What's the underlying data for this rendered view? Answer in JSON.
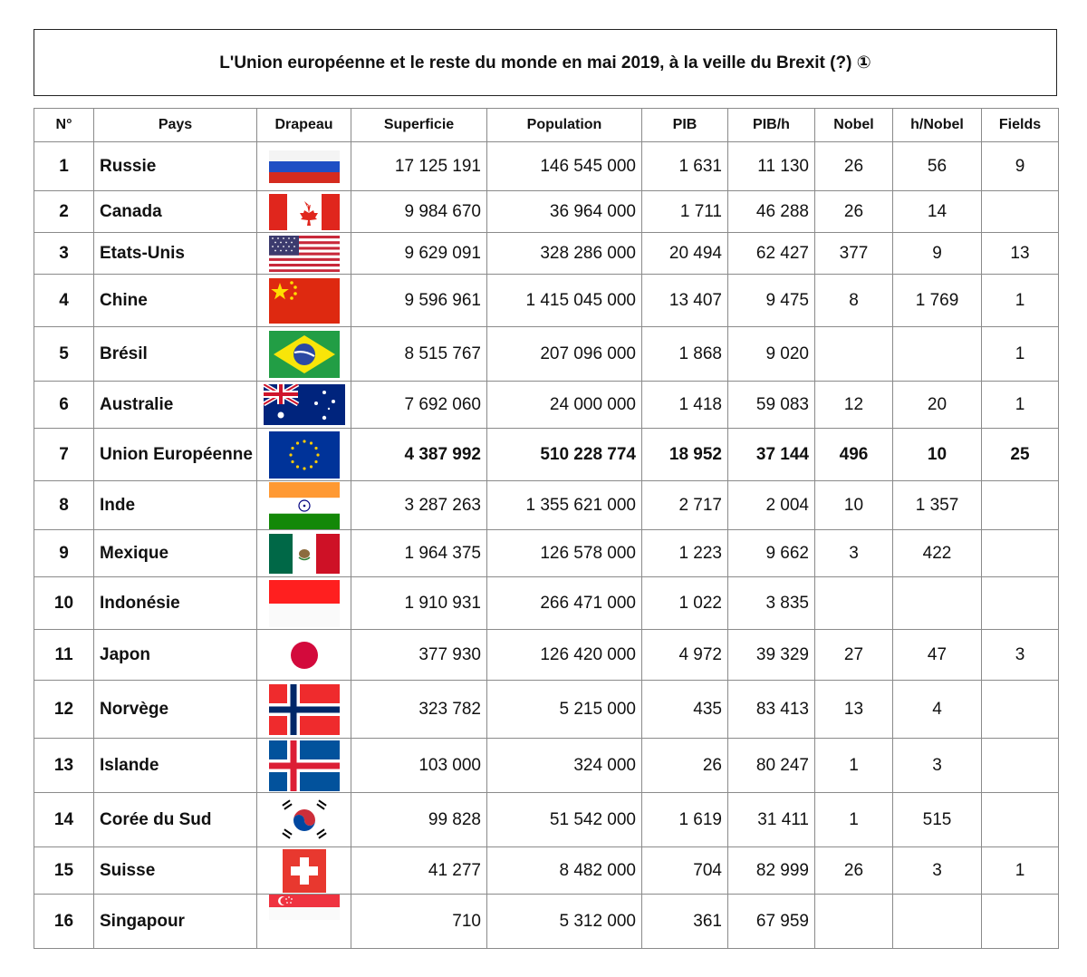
{
  "title": "L'Union européenne et le reste du monde en mai 2019, à la veille du Brexit (?) ①",
  "headers": [
    "N°",
    "Pays",
    "Drapeau",
    "Superficie",
    "Population",
    "PIB",
    "PIB/h",
    "Nobel",
    "h/Nobel",
    "Fields"
  ],
  "rows": [
    {
      "n": "1",
      "pays": "Russie",
      "flag": "russia-flag-icon",
      "superficie": "17 125 191",
      "population": "146 545 000",
      "pib": "1 631",
      "pibh": "11 130",
      "nobel": "26",
      "hnobel": "56",
      "fields": "9"
    },
    {
      "n": "2",
      "pays": "Canada",
      "flag": "canada-flag-icon",
      "superficie": "9 984 670",
      "population": "36 964 000",
      "pib": "1 711",
      "pibh": "46 288",
      "nobel": "26",
      "hnobel": "14",
      "fields": ""
    },
    {
      "n": "3",
      "pays": "Etats-Unis",
      "flag": "usa-flag-icon",
      "superficie": "9 629 091",
      "population": "328 286 000",
      "pib": "20 494",
      "pibh": "62 427",
      "nobel": "377",
      "hnobel": "9",
      "fields": "13"
    },
    {
      "n": "4",
      "pays": "Chine",
      "flag": "china-flag-icon",
      "superficie": "9 596 961",
      "population": "1 415 045 000",
      "pib": "13 407",
      "pibh": "9 475",
      "nobel": "8",
      "hnobel": "1 769",
      "fields": "1"
    },
    {
      "n": "5",
      "pays": "Brésil",
      "flag": "brazil-flag-icon",
      "superficie": "8 515 767",
      "population": "207 096 000",
      "pib": "1 868",
      "pibh": "9 020",
      "nobel": "",
      "hnobel": "",
      "fields": "1"
    },
    {
      "n": "6",
      "pays": "Australie",
      "flag": "australia-flag-icon",
      "superficie": "7 692 060",
      "population": "24 000 000",
      "pib": "1 418",
      "pibh": "59 083",
      "nobel": "12",
      "hnobel": "20",
      "fields": "1"
    },
    {
      "n": "7",
      "pays": "Union Européenne",
      "flag": "eu-flag-icon",
      "superficie": "4 387 992",
      "population": "510 228 774",
      "pib": "18 952",
      "pibh": "37 144",
      "nobel": "496",
      "hnobel": "10",
      "fields": "25",
      "bold": true
    },
    {
      "n": "8",
      "pays": "Inde",
      "flag": "india-flag-icon",
      "superficie": "3 287 263",
      "population": "1 355 621 000",
      "pib": "2 717",
      "pibh": "2 004",
      "nobel": "10",
      "hnobel": "1 357",
      "fields": ""
    },
    {
      "n": "9",
      "pays": "Mexique",
      "flag": "mexico-flag-icon",
      "superficie": "1 964 375",
      "population": "126 578 000",
      "pib": "1 223",
      "pibh": "9 662",
      "nobel": "3",
      "hnobel": "422",
      "fields": ""
    },
    {
      "n": "10",
      "pays": "Indonésie",
      "flag": "indonesia-flag-icon",
      "superficie": "1 910 931",
      "population": "266 471 000",
      "pib": "1 022",
      "pibh": "3 835",
      "nobel": "",
      "hnobel": "",
      "fields": ""
    },
    {
      "n": "11",
      "pays": "Japon",
      "flag": "japan-flag-icon",
      "superficie": "377 930",
      "population": "126 420 000",
      "pib": "4 972",
      "pibh": "39 329",
      "nobel": "27",
      "hnobel": "47",
      "fields": "3"
    },
    {
      "n": "12",
      "pays": "Norvège",
      "flag": "norway-flag-icon",
      "superficie": "323 782",
      "population": "5 215 000",
      "pib": "435",
      "pibh": "83 413",
      "nobel": "13",
      "hnobel": "4",
      "fields": ""
    },
    {
      "n": "13",
      "pays": "Islande",
      "flag": "iceland-flag-icon",
      "superficie": "103 000",
      "population": "324 000",
      "pib": "26",
      "pibh": "80 247",
      "nobel": "1",
      "hnobel": "3",
      "fields": ""
    },
    {
      "n": "14",
      "pays": "Corée du Sud",
      "flag": "south-korea-flag-icon",
      "superficie": "99 828",
      "population": "51 542 000",
      "pib": "1 619",
      "pibh": "31 411",
      "nobel": "1",
      "hnobel": "515",
      "fields": ""
    },
    {
      "n": "15",
      "pays": "Suisse",
      "flag": "switzerland-flag-icon",
      "superficie": "41 277",
      "population": "8 482 000",
      "pib": "704",
      "pibh": "82 999",
      "nobel": "26",
      "hnobel": "3",
      "fields": "1"
    },
    {
      "n": "16",
      "pays": "Singapour",
      "flag": "singapore-flag-icon",
      "superficie": "710",
      "population": "5 312 000",
      "pib": "361",
      "pibh": "67 959",
      "nobel": "",
      "hnobel": "",
      "fields": ""
    }
  ]
}
